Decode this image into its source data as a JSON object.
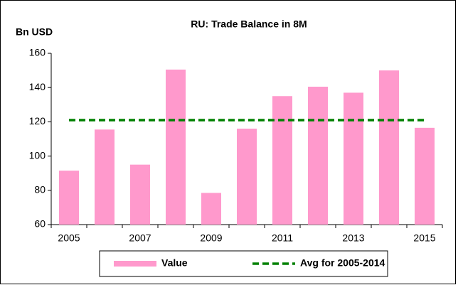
{
  "chart_data": {
    "type": "bar",
    "title": "RU: Trade Balance in 8M",
    "y_label": "Bn USD",
    "categories": [
      "2005",
      null,
      "2007",
      null,
      "2009",
      null,
      "2011",
      null,
      "2013",
      null,
      "2015"
    ],
    "series": [
      {
        "name": "Value",
        "type": "bar",
        "color": "#ff99cc",
        "values": [
          91.5,
          115.5,
          95,
          150.5,
          78.5,
          116,
          135,
          140.5,
          137,
          150,
          116.5
        ]
      },
      {
        "name": "Avg for 2005-2014",
        "type": "line",
        "color": "#008000",
        "values": [
          121,
          121,
          121,
          121,
          121,
          121,
          121,
          121,
          121,
          121,
          121
        ]
      }
    ],
    "ylim": [
      60,
      160
    ],
    "yticks": [
      60,
      80,
      100,
      120,
      140,
      160
    ],
    "grid": false,
    "legend": "bottom"
  }
}
